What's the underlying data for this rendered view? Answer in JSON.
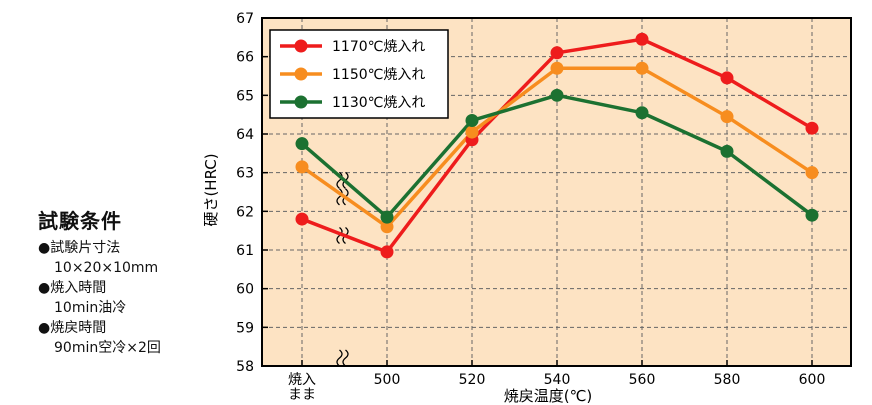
{
  "conditions": {
    "title": "試験条件",
    "items": [
      {
        "label": "●試験片寸法",
        "value": "10×20×10mm"
      },
      {
        "label": "●焼入時間",
        "value": "10min油冷"
      },
      {
        "label": "●焼戻時間",
        "value": "90min空冷×2回"
      }
    ]
  },
  "chart_data": {
    "type": "line",
    "xlabel": "焼戻温度(℃)",
    "ylabel": "硬さ(HRC)",
    "categories": [
      "焼入\nまま",
      "500",
      "520",
      "540",
      "560",
      "580",
      "600"
    ],
    "ylim": [
      58,
      67
    ],
    "yticks": [
      "58",
      "59",
      "60",
      "61",
      "62",
      "63",
      "64",
      "65",
      "66",
      "67"
    ],
    "grid": true,
    "legend_position": "top-left",
    "axis_break": "between 焼入まま and 500",
    "background": "#fde3c3",
    "series": [
      {
        "name": "1170℃焼入れ",
        "color": "#ee1c1c",
        "values": [
          61.8,
          60.95,
          63.85,
          66.1,
          66.45,
          65.45,
          64.15
        ]
      },
      {
        "name": "1150℃焼入れ",
        "color": "#f78d1f",
        "values": [
          63.15,
          61.6,
          64.05,
          65.7,
          65.7,
          64.45,
          63.0
        ]
      },
      {
        "name": "1130℃焼入れ",
        "color": "#1c7131",
        "values": [
          63.75,
          61.85,
          64.35,
          65.0,
          64.55,
          63.55,
          61.9
        ]
      }
    ]
  }
}
